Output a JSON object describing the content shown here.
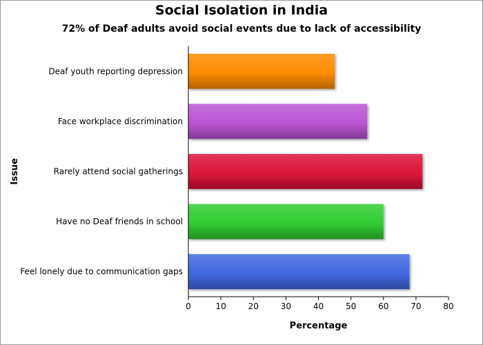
{
  "chart_data": {
    "type": "bar",
    "orientation": "horizontal",
    "title": "Social Isolation in India",
    "subtitle": "72% of Deaf adults avoid social events due to lack of accessibility",
    "xlabel": "Percentage",
    "ylabel": "Issue",
    "xlim": [
      0,
      80
    ],
    "xticks": [
      "0",
      "10",
      "20",
      "30",
      "40",
      "50",
      "60",
      "70",
      "80"
    ],
    "grid": false,
    "categories": [
      "Feel lonely due to communication gaps",
      "Have no Deaf friends in school",
      "Rarely attend social gatherings",
      "Face workplace discrimination",
      "Deaf youth reporting depression"
    ],
    "values": [
      68,
      60,
      72,
      55,
      45
    ],
    "colors": [
      "#4169e1",
      "#32cd32",
      "#dc143c",
      "#ba55d3",
      "#ff8c00"
    ]
  }
}
